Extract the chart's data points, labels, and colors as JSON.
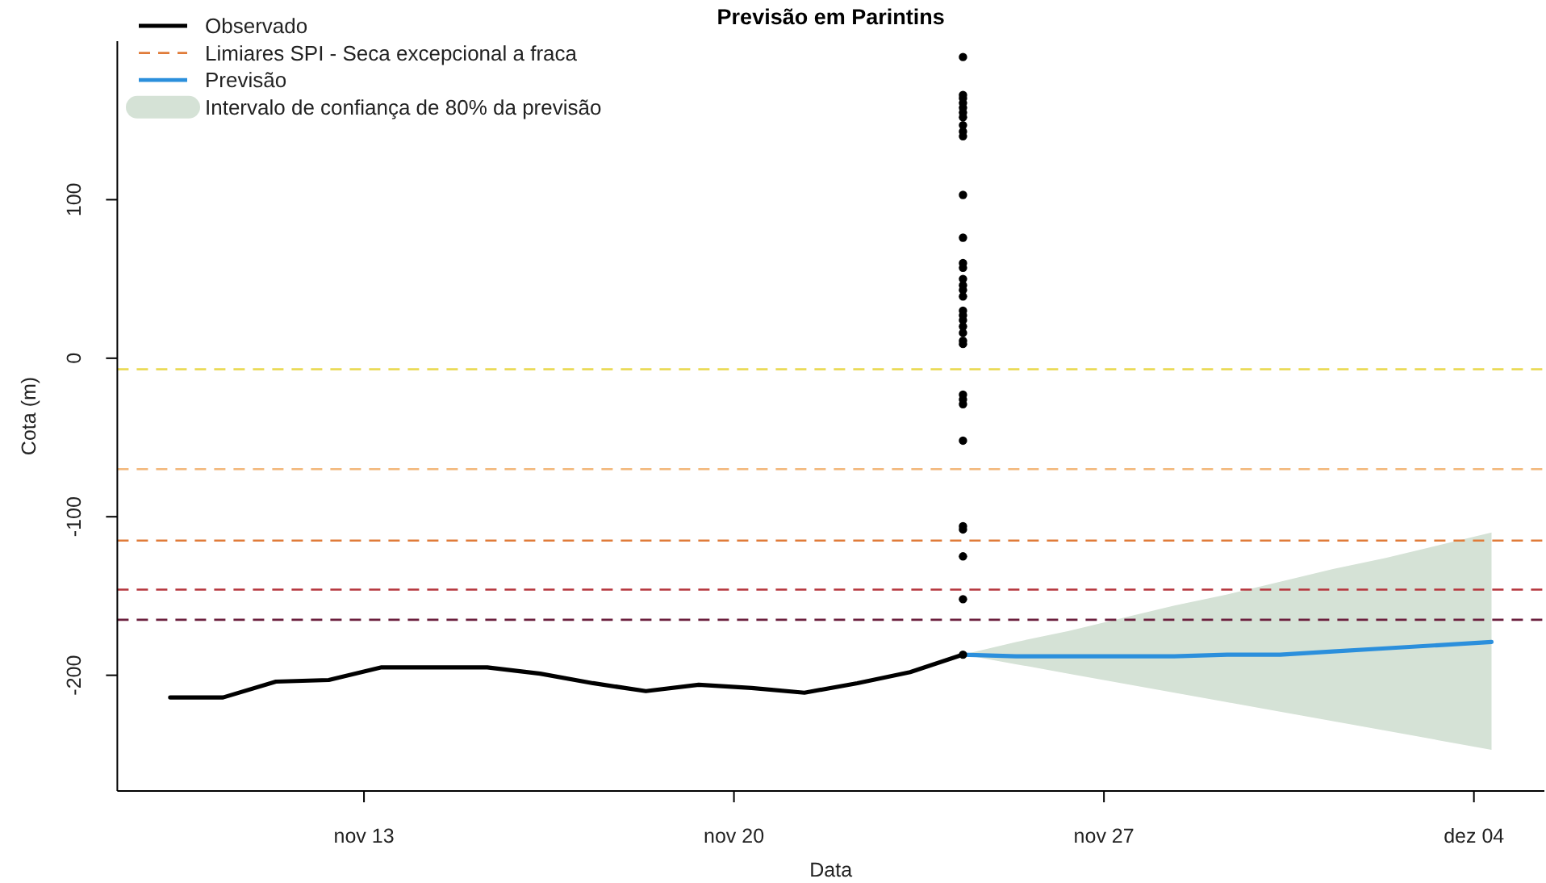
{
  "chart_data": {
    "type": "line",
    "title": "Previsão em Parintins",
    "xlabel": "Data",
    "ylabel": "Cota (m)",
    "xlim": [
      "--11-08T08:00",
      "--12-05T08:00"
    ],
    "xticks": [
      {
        "value": "--11-13",
        "label": "nov 13"
      },
      {
        "value": "--11-20",
        "label": "nov 20"
      },
      {
        "value": "--11-27",
        "label": "nov 27"
      },
      {
        "value": "--12-04",
        "label": "dez 04"
      }
    ],
    "ylim": [
      -273,
      200
    ],
    "yticks": [
      -200,
      -100,
      0,
      100
    ],
    "legend": "top left",
    "series": [
      {
        "name": "Observado",
        "color": "#000000",
        "x": [
          "--11-09T08:00",
          "--11-10T08:00",
          "--11-11T08:00",
          "--11-12T08:00",
          "--11-13T08:00",
          "--11-14T08:00",
          "--11-15T08:00",
          "--11-16T08:00",
          "--11-17T08:00",
          "--11-18T08:00",
          "--11-19T08:00",
          "--11-20T08:00",
          "--11-21T08:00",
          "--11-22T08:00",
          "--11-23T08:00",
          "--11-24T08:00"
        ],
        "values": [
          -214,
          -214,
          -204,
          -203,
          -195,
          -195,
          -195,
          -199,
          -205,
          -210,
          -206,
          -208,
          -211,
          -205,
          -198,
          -187
        ]
      },
      {
        "name": "Previsão",
        "color": "#2b8fdc",
        "x": [
          "--11-24T08:00",
          "--11-25T08:00",
          "--11-26T08:00",
          "--11-27T08:00",
          "--11-28T08:00",
          "--11-29T08:00",
          "--11-30T08:00",
          "--12-01T08:00",
          "--12-02T08:00",
          "--12-03T08:00",
          "--12-04T08:00"
        ],
        "values": [
          -187,
          -188,
          -188,
          -188,
          -188,
          -187,
          -187,
          -185,
          -183,
          -181,
          -179
        ],
        "lower": [
          -187,
          -193,
          -199,
          -205,
          -211,
          -217,
          -223,
          -229,
          -235,
          -241,
          -247
        ],
        "upper": [
          -187,
          -179,
          -172,
          -164,
          -156,
          -149,
          -141,
          -133,
          -126,
          -118,
          -110
        ]
      },
      {
        "name": "Intervalo de confiança de 80% da previsão",
        "type": "area",
        "color": "#d5e2d6"
      },
      {
        "type": "scatter",
        "color": "#000000",
        "marker": "circle",
        "x": [
          "--11-24T08:00",
          "--11-24T08:00",
          "--11-24T08:00",
          "--11-24T08:00",
          "--11-24T08:00",
          "--11-24T08:00",
          "--11-24T08:00",
          "--11-24T08:00",
          "--11-24T08:00",
          "--11-24T08:00",
          "--11-24T08:00",
          "--11-24T08:00",
          "--11-24T08:00",
          "--11-24T08:00",
          "--11-24T08:00",
          "--11-24T08:00",
          "--11-24T08:00",
          "--11-24T08:00",
          "--11-24T08:00",
          "--11-24T08:00",
          "--11-24T08:00",
          "--11-24T08:00",
          "--11-24T08:00",
          "--11-24T08:00",
          "--11-24T08:00",
          "--11-24T08:00",
          "--11-24T08:00",
          "--11-24T08:00",
          "--11-24T08:00",
          "--11-24T08:00",
          "--11-24T08:00",
          "--11-24T08:00",
          "--11-24T08:00",
          "--11-24T08:00"
        ],
        "values": [
          190,
          166,
          164,
          161,
          158,
          155,
          152,
          147,
          143,
          140,
          103,
          76,
          60,
          57,
          50,
          46,
          43,
          39,
          30,
          27,
          24,
          20,
          16,
          11,
          9,
          -23,
          -26,
          -29,
          -52,
          -106,
          -108,
          -125,
          -152,
          -187
        ]
      }
    ],
    "ref_lines": [
      {
        "axis": "y",
        "value": -7,
        "color": "#e9d84b",
        "line_style": "dashed"
      },
      {
        "axis": "y",
        "value": -70,
        "color": "#f2b77a",
        "line_style": "dashed"
      },
      {
        "axis": "y",
        "value": -115,
        "color": "#e07b39",
        "line_style": "dashed",
        "label": "Limiares SPI - Seca excepcional a fraca"
      },
      {
        "axis": "y",
        "value": -146,
        "color": "#b5343c",
        "line_style": "dashed"
      },
      {
        "axis": "y",
        "value": -165,
        "color": "#6b1f3d",
        "line_style": "dashed"
      }
    ]
  }
}
